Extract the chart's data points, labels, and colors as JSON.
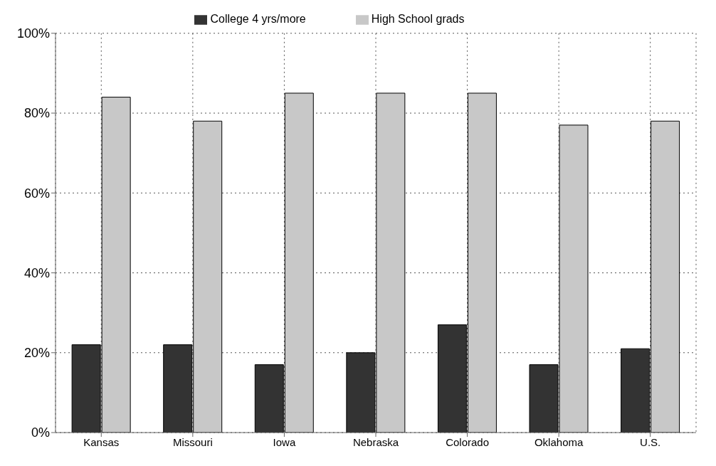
{
  "chart_data": {
    "type": "bar",
    "categories": [
      "Kansas",
      "Missouri",
      "Iowa",
      "Nebraska",
      "Colorado",
      "Oklahoma",
      "U.S."
    ],
    "series": [
      {
        "name": "College 4 yrs/more",
        "color": "#333333",
        "values": [
          22,
          22,
          17,
          20,
          27,
          17,
          21
        ]
      },
      {
        "name": "High School grads",
        "color": "#c8c8c8",
        "values": [
          84,
          78,
          85,
          85,
          85,
          77,
          78
        ]
      }
    ],
    "ylim": [
      0,
      100
    ],
    "yticks": [
      {
        "value": 0,
        "label": "0%"
      },
      {
        "value": 20,
        "label": "20%"
      },
      {
        "value": 40,
        "label": "40%"
      },
      {
        "value": 60,
        "label": "60%"
      },
      {
        "value": 80,
        "label": "80%"
      },
      {
        "value": 100,
        "label": "100%"
      }
    ],
    "grid": true,
    "legend": "top"
  }
}
